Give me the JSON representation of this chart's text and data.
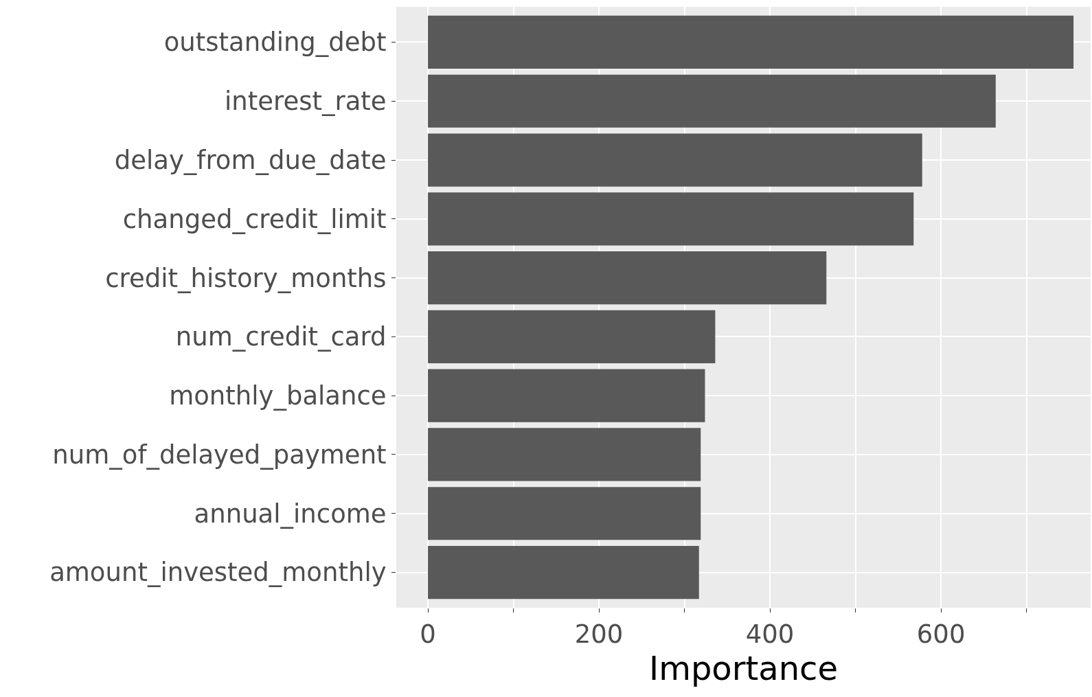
{
  "chart_data": {
    "type": "bar",
    "orientation": "horizontal",
    "xlabel": "Importance",
    "categories": [
      "outstanding_debt",
      "interest_rate",
      "delay_from_due_date",
      "changed_credit_limit",
      "credit_history_months",
      "num_credit_card",
      "monthly_balance",
      "num_of_delayed_payment",
      "annual_income",
      "amount_invested_monthly"
    ],
    "values": [
      755,
      664,
      578,
      568,
      466,
      336,
      324,
      319,
      319,
      317
    ],
    "color": "#595959",
    "xlim": [
      -37,
      775
    ],
    "xticks": [
      0,
      {
        "value": 100,
        "label": null
      },
      200,
      {
        "value": 300,
        "label": null
      },
      400,
      {
        "value": 500,
        "label": null
      },
      600,
      {
        "value": 700,
        "label": null
      }
    ],
    "grid": true
  }
}
